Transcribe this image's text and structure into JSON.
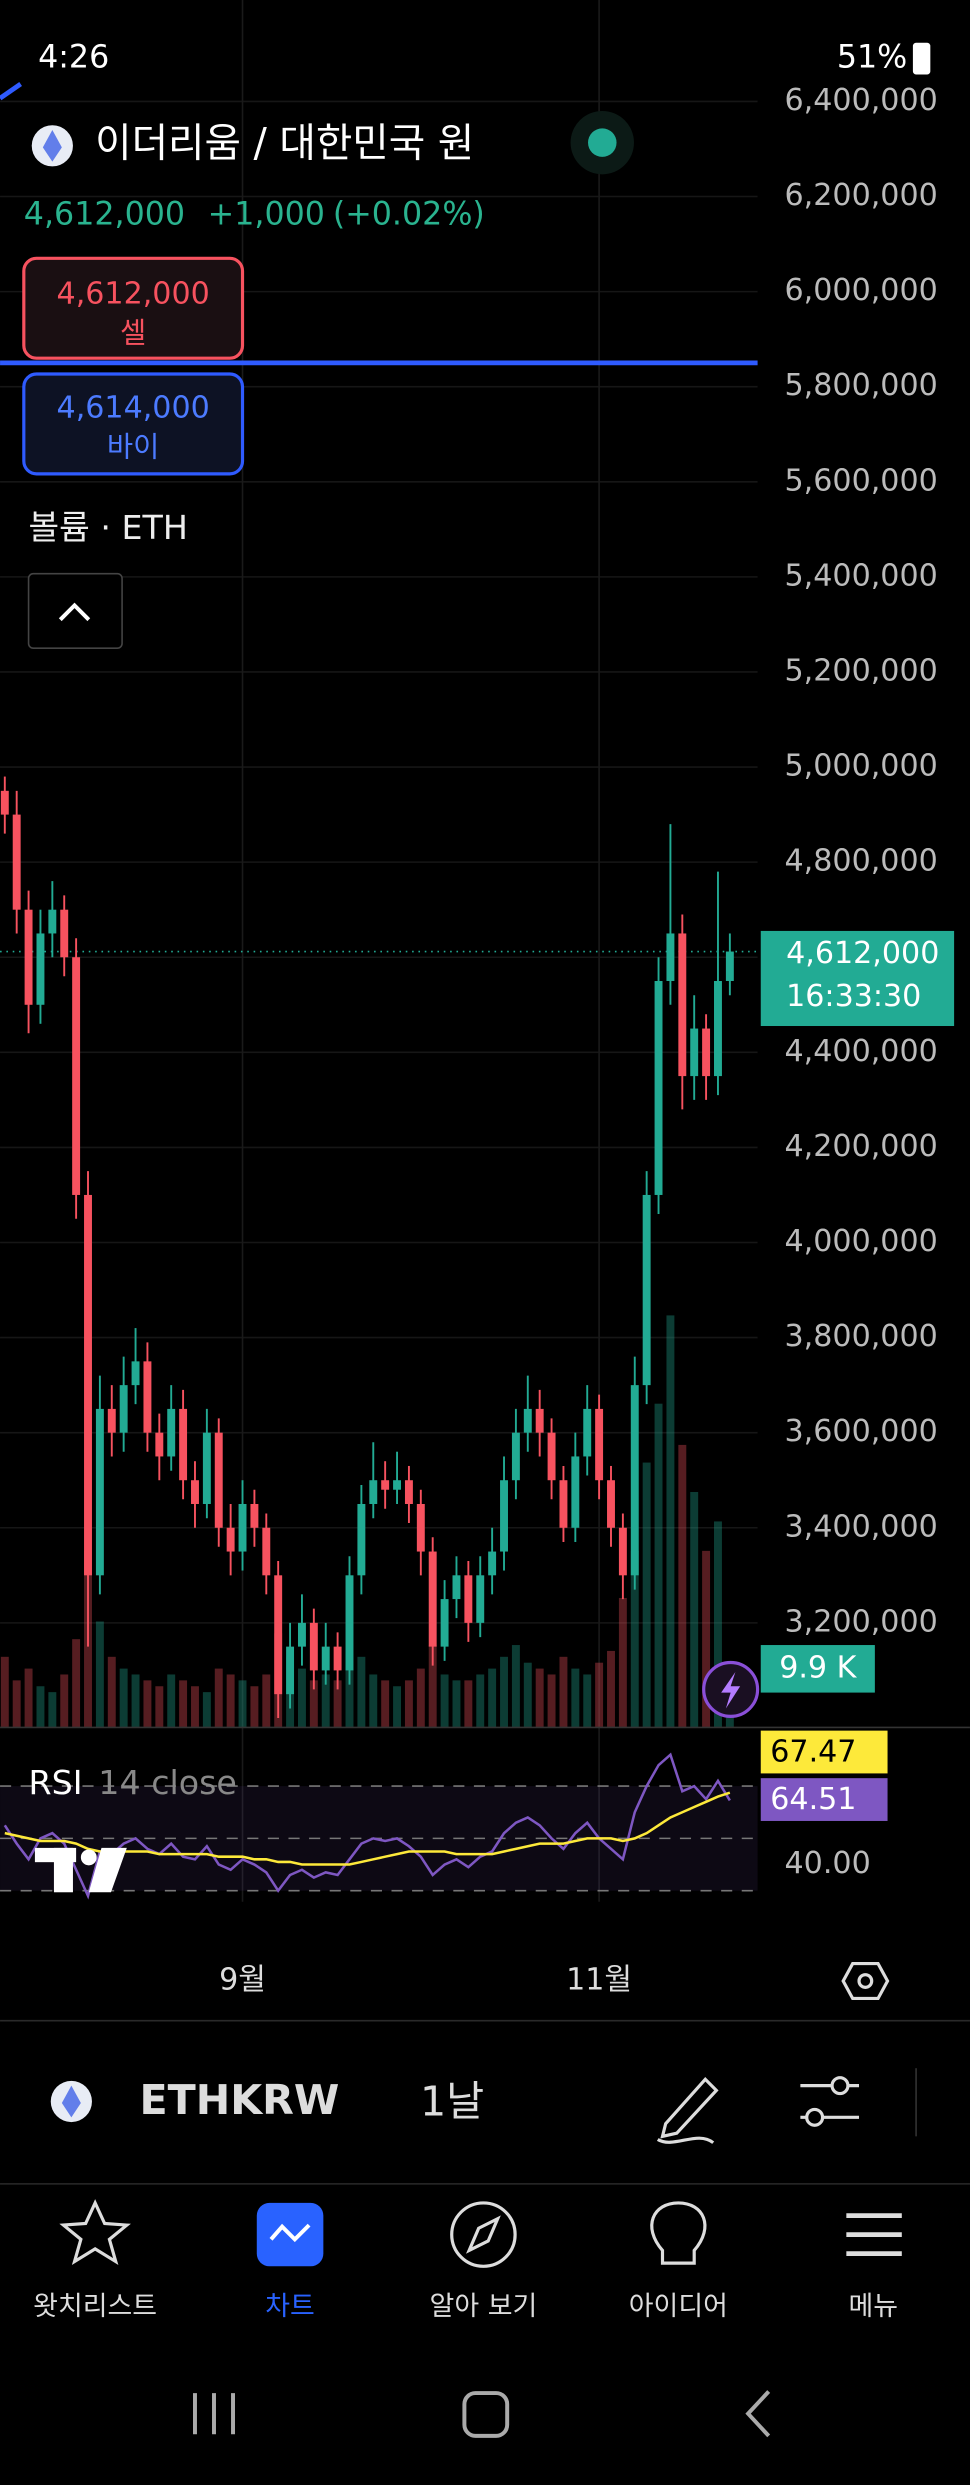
{
  "status_bar": {
    "time": "4:26",
    "battery": "51%"
  },
  "header": {
    "symbol": "이더리움 / 대한민국 원",
    "price": "4,612,000",
    "change": "+1,000",
    "change_pct": "(+0.02%)"
  },
  "sell": {
    "price": "4,612,000",
    "label": "셀"
  },
  "buy": {
    "price": "4,614,000",
    "label": "바이"
  },
  "volume_legend": "볼륨 · ETH",
  "chart_data": [
    {
      "type": "candlestick",
      "up_color": "#22ab94",
      "down_color": "#f7525f",
      "open": [
        4950000,
        4900000,
        4700000,
        4500000,
        4650000,
        4700000,
        4600000,
        4100000,
        3300000,
        3650000,
        3600000,
        3700000,
        3750000,
        3600000,
        3550000,
        3650000,
        3500000,
        3450000,
        3600000,
        3400000,
        3350000,
        3450000,
        3400000,
        3300000,
        3050000,
        3150000,
        3200000,
        3100000,
        3150000,
        3100000,
        3300000,
        3450000,
        3500000,
        3480000,
        3500000,
        3450000,
        3350000,
        3150000,
        3250000,
        3300000,
        3200000,
        3300000,
        3350000,
        3500000,
        3600000,
        3650000,
        3600000,
        3500000,
        3400000,
        3550000,
        3650000,
        3500000,
        3400000,
        3300000,
        3700000,
        4100000,
        4550000,
        4650000,
        4350000,
        4450000,
        4350000,
        4550000
      ],
      "high": [
        4980000,
        4950000,
        4740000,
        4700000,
        4760000,
        4730000,
        4640000,
        4150000,
        3720000,
        3700000,
        3760000,
        3820000,
        3790000,
        3640000,
        3700000,
        3690000,
        3540000,
        3650000,
        3630000,
        3450000,
        3500000,
        3480000,
        3430000,
        3330000,
        3200000,
        3260000,
        3230000,
        3200000,
        3180000,
        3340000,
        3490000,
        3580000,
        3540000,
        3560000,
        3530000,
        3480000,
        3380000,
        3290000,
        3340000,
        3330000,
        3340000,
        3400000,
        3550000,
        3650000,
        3720000,
        3690000,
        3630000,
        3530000,
        3600000,
        3700000,
        3680000,
        3530000,
        3430000,
        3760000,
        4150000,
        4600000,
        4880000,
        4690000,
        4520000,
        4480000,
        4780000,
        4650000
      ],
      "low": [
        4860000,
        4650000,
        4440000,
        4460000,
        4600000,
        4560000,
        4050000,
        3150000,
        3260000,
        3550000,
        3560000,
        3660000,
        3560000,
        3500000,
        3520000,
        3460000,
        3400000,
        3420000,
        3360000,
        3300000,
        3310000,
        3360000,
        3260000,
        3000000,
        3020000,
        3110000,
        3060000,
        3070000,
        3060000,
        3070000,
        3260000,
        3420000,
        3440000,
        3450000,
        3410000,
        3300000,
        3110000,
        3120000,
        3210000,
        3160000,
        3170000,
        3260000,
        3310000,
        3460000,
        3560000,
        3550000,
        3460000,
        3370000,
        3370000,
        3510000,
        3460000,
        3360000,
        3250000,
        3270000,
        3660000,
        4060000,
        4500000,
        4280000,
        4300000,
        4300000,
        4310000,
        4520000
      ],
      "close": [
        4900000,
        4700000,
        4500000,
        4650000,
        4700000,
        4600000,
        4100000,
        3300000,
        3650000,
        3600000,
        3700000,
        3750000,
        3600000,
        3550000,
        3650000,
        3500000,
        3450000,
        3600000,
        3400000,
        3350000,
        3450000,
        3400000,
        3300000,
        3050000,
        3150000,
        3200000,
        3100000,
        3150000,
        3100000,
        3300000,
        3450000,
        3500000,
        3480000,
        3500000,
        3450000,
        3350000,
        3150000,
        3250000,
        3300000,
        3200000,
        3300000,
        3350000,
        3500000,
        3600000,
        3650000,
        3600000,
        3500000,
        3400000,
        3550000,
        3650000,
        3500000,
        3400000,
        3300000,
        3700000,
        4100000,
        4550000,
        4650000,
        4350000,
        4450000,
        4350000,
        4550000,
        4612000
      ],
      "volume": [
        12000,
        8000,
        10000,
        7000,
        6000,
        9000,
        15000,
        30000,
        18000,
        12000,
        10000,
        9000,
        8000,
        7000,
        9000,
        8000,
        7000,
        6000,
        10000,
        9000,
        8000,
        7000,
        9000,
        16000,
        12000,
        10000,
        8000,
        9000,
        8000,
        10000,
        12000,
        9000,
        8000,
        7000,
        8000,
        10000,
        14000,
        9000,
        8000,
        8000,
        9000,
        10000,
        12000,
        14000,
        11000,
        10000,
        9000,
        12000,
        10000,
        9000,
        11000,
        13000,
        22000,
        30000,
        45000,
        55000,
        70000,
        48000,
        40000,
        30000,
        35000,
        9900
      ],
      "volume_label": {
        "value": 9900,
        "label": "9.9 K"
      },
      "last_price": {
        "value": 4612000,
        "label": "4,612,000"
      },
      "countdown": "16:33:30",
      "price_line": 5850000,
      "ylim": [
        3000000,
        6400000
      ],
      "yticks": [
        {
          "value": 6400000,
          "label": "6,400,000"
        },
        {
          "value": 6200000,
          "label": "6,200,000"
        },
        {
          "value": 6000000,
          "label": "6,000,000"
        },
        {
          "value": 5800000,
          "label": "5,800,000"
        },
        {
          "value": 5600000,
          "label": "5,600,000"
        },
        {
          "value": 5400000,
          "label": "5,400,000"
        },
        {
          "value": 5200000,
          "label": "5,200,000"
        },
        {
          "value": 5000000,
          "label": "5,000,000"
        },
        {
          "value": 4800000,
          "label": "4,800,000"
        },
        {
          "value": 4600000,
          "label": "4,600,000"
        },
        {
          "value": 4400000,
          "label": "4,400,000"
        },
        {
          "value": 4200000,
          "label": "4,200,000"
        },
        {
          "value": 4000000,
          "label": "4,000,000"
        },
        {
          "value": 3800000,
          "label": "3,800,000"
        },
        {
          "value": 3600000,
          "label": "3,600,000"
        },
        {
          "value": 3400000,
          "label": "3,400,000"
        },
        {
          "value": 3200000,
          "label": "3,200,000"
        }
      ],
      "xticks": [
        {
          "value": 20,
          "label": "9월"
        },
        {
          "value": 50,
          "label": "11월"
        }
      ],
      "grid": true
    },
    {
      "type": "line",
      "title": "RSI",
      "subtitle": "14 close",
      "series": [
        {
          "color": "#7e57c2",
          "values": [
            55,
            48,
            42,
            50,
            52,
            48,
            38,
            28,
            45,
            44,
            48,
            50,
            46,
            44,
            48,
            43,
            42,
            47,
            40,
            38,
            42,
            40,
            37,
            30,
            36,
            38,
            35,
            37,
            36,
            42,
            48,
            50,
            49,
            50,
            47,
            43,
            36,
            40,
            42,
            39,
            43,
            45,
            52,
            56,
            58,
            55,
            50,
            46,
            52,
            56,
            50,
            46,
            42,
            60,
            70,
            78,
            82,
            68,
            70,
            65,
            72,
            64.51
          ]
        },
        {
          "color": "#fde93a",
          "values": [
            52,
            51,
            50,
            49,
            49,
            49,
            48,
            46,
            45,
            45,
            45,
            45,
            45,
            44,
            44,
            44,
            44,
            44,
            43,
            43,
            43,
            42,
            42,
            41,
            41,
            40,
            40,
            40,
            40,
            40,
            41,
            42,
            43,
            44,
            45,
            45,
            45,
            45,
            44,
            44,
            44,
            44,
            45,
            46,
            47,
            48,
            48,
            48,
            49,
            50,
            50,
            50,
            49,
            50,
            52,
            55,
            58,
            60,
            62,
            64,
            66,
            67.47
          ]
        }
      ],
      "levels": [
        70,
        50,
        30
      ],
      "ylim": [
        28,
        90
      ],
      "yticks": [
        {
          "value": 40,
          "label": "40.00"
        }
      ]
    }
  ],
  "toolbar": {
    "symbol": "ETHKRW",
    "interval": "1날"
  },
  "nav": [
    "왓치리스트",
    "차트",
    "알아 보기",
    "아이디어",
    "메뉴"
  ]
}
